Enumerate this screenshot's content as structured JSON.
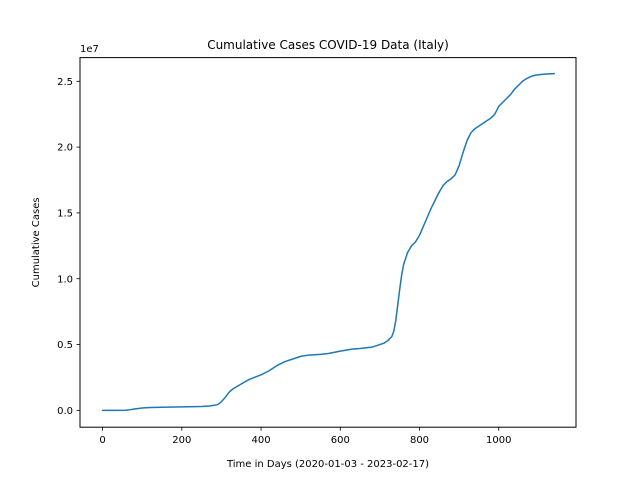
{
  "chart_data": {
    "type": "line",
    "title": "Cumulative Cases COVID-19 Data (Italy)",
    "xlabel": "Time in Days (2020-01-03 - 2023-02-17)",
    "ylabel": "Cumulative Cases",
    "y_offset_label": "1e7",
    "xlim": [
      -57,
      1195
    ],
    "ylim": [
      -0.128,
      2.68
    ],
    "x_ticks": [
      0,
      200,
      400,
      600,
      800,
      1000
    ],
    "x_tick_labels": [
      "0",
      "200",
      "400",
      "600",
      "800",
      "1000"
    ],
    "y_ticks": [
      0.0,
      0.5,
      1.0,
      1.5,
      2.0,
      2.5
    ],
    "y_tick_labels": [
      "0.0",
      "0.5",
      "1.0",
      "1.5",
      "2.0",
      "2.5"
    ],
    "grid": false,
    "line_color": "#1f77b4",
    "series": [
      {
        "x": [
          0,
          30,
          60,
          70,
          80,
          100,
          120,
          150,
          200,
          250,
          270,
          290,
          300,
          310,
          320,
          330,
          350,
          370,
          400,
          420,
          440,
          460,
          480,
          500,
          520,
          550,
          570,
          600,
          630,
          650,
          680,
          700,
          710,
          720,
          730,
          735,
          740,
          745,
          750,
          755,
          760,
          770,
          780,
          790,
          800,
          810,
          820,
          830,
          840,
          850,
          860,
          870,
          880,
          890,
          900,
          910,
          920,
          930,
          940,
          950,
          960,
          970,
          980,
          990,
          1000,
          1010,
          1020,
          1030,
          1040,
          1050,
          1060,
          1070,
          1080,
          1090,
          1100,
          1120,
          1140
        ],
        "y": [
          0.0,
          0.0,
          0.001,
          0.005,
          0.01,
          0.018,
          0.022,
          0.024,
          0.026,
          0.029,
          0.033,
          0.043,
          0.065,
          0.1,
          0.14,
          0.165,
          0.2,
          0.235,
          0.27,
          0.3,
          0.34,
          0.37,
          0.39,
          0.41,
          0.42,
          0.425,
          0.432,
          0.45,
          0.465,
          0.47,
          0.48,
          0.5,
          0.51,
          0.53,
          0.56,
          0.6,
          0.68,
          0.8,
          0.92,
          1.03,
          1.11,
          1.2,
          1.25,
          1.28,
          1.33,
          1.4,
          1.47,
          1.54,
          1.6,
          1.66,
          1.71,
          1.74,
          1.76,
          1.79,
          1.86,
          1.96,
          2.05,
          2.11,
          2.14,
          2.16,
          2.18,
          2.2,
          2.22,
          2.25,
          2.31,
          2.34,
          2.37,
          2.4,
          2.44,
          2.47,
          2.5,
          2.52,
          2.535,
          2.545,
          2.55,
          2.555,
          2.558
        ]
      }
    ]
  }
}
